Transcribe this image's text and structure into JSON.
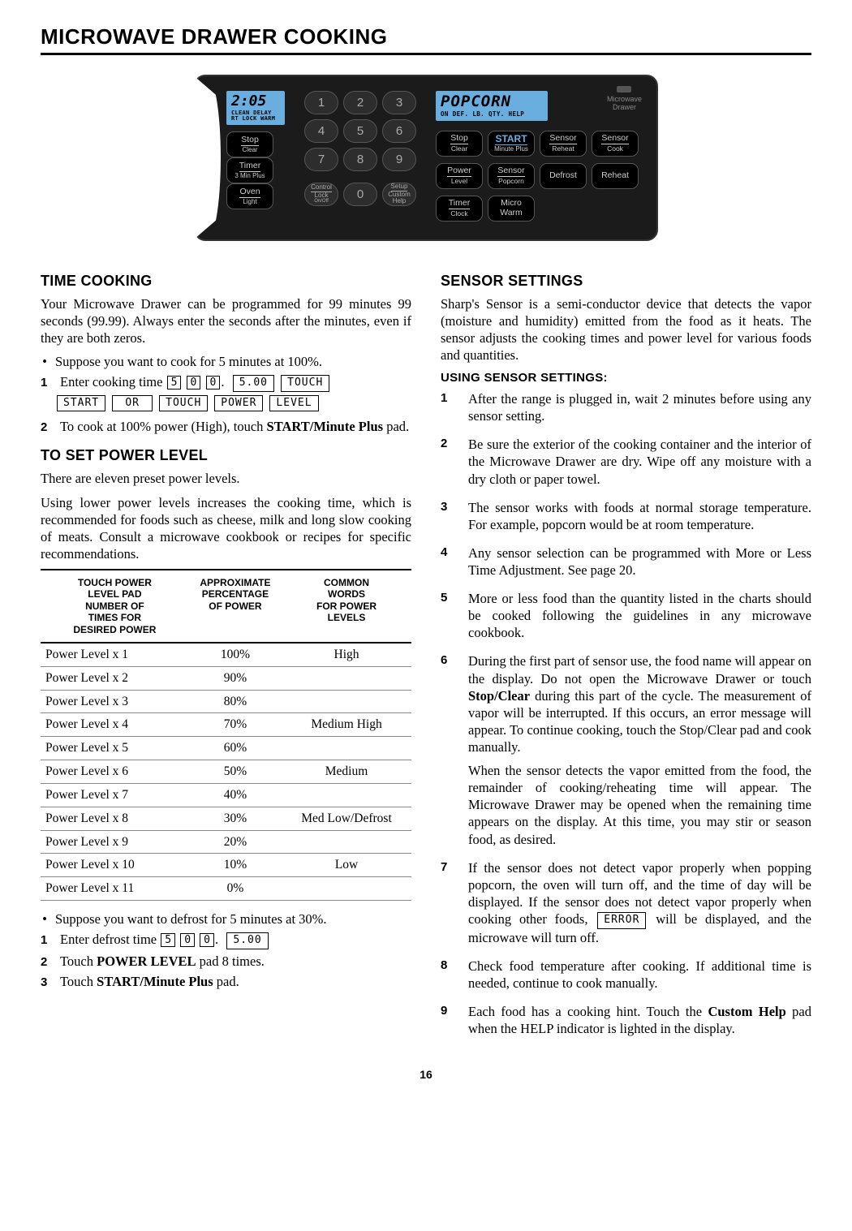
{
  "page_title": "MICROWAVE DRAWER COOKING",
  "page_number": "16",
  "panel": {
    "left_lcd": {
      "time": "2:05",
      "sub": "CLEAN DELAY\nRT LOCK WARM"
    },
    "right_lcd": {
      "text": "POPCORN",
      "sub": "ON  DEF.  LB.  QTY.  HELP"
    },
    "drawer": "Microwave\nDrawer",
    "left_btns": [
      [
        "Stop",
        "Clear"
      ],
      [
        "Timer",
        "3 Min Plus"
      ],
      [
        "Oven",
        "Light"
      ]
    ],
    "keypad": [
      "1",
      "2",
      "3",
      "4",
      "5",
      "6",
      "7",
      "8",
      "9"
    ],
    "keypad_bottom": [
      [
        "Control",
        "Lock",
        "On/Off"
      ],
      [
        "0",
        ""
      ],
      [
        "Setup",
        "Custom Help"
      ]
    ],
    "right_rows": [
      [
        [
          "Stop",
          "Clear"
        ],
        [
          "START",
          "Minute Plus"
        ],
        [
          "Sensor",
          "Reheat"
        ],
        [
          "Sensor",
          "Cook"
        ]
      ],
      [
        [
          "Power",
          "Level"
        ],
        [
          "Sensor",
          "Popcorn"
        ],
        [
          "Defrost",
          ""
        ],
        [
          "Reheat",
          ""
        ]
      ],
      [
        [
          "Timer",
          "Clock"
        ],
        [
          "Micro Warm",
          ""
        ]
      ]
    ]
  },
  "left_col": {
    "time_hdr": "TIME COOKING",
    "time_intro": "Your Microwave Drawer can be programmed for 99 minutes 99 seconds (99.99). Always enter the seconds after the minutes, even if they are both zeros.",
    "time_bullet": "Suppose you want to cook for 5 minutes at 100%.",
    "step1_pre": "Enter cooking time ",
    "step1_keys": [
      "5",
      "0",
      "0"
    ],
    "disp_5": "5.00",
    "disp_touch": "TOUCH",
    "disp_row": [
      "START",
      "OR",
      "TOUCH",
      "POWER",
      "LEVEL"
    ],
    "step2": "To cook at 100% power (High), touch START/Minute Plus pad.",
    "step2_bold": "START/Minute Plus",
    "pl_hdr": "TO SET POWER LEVEL",
    "pl_p1": "There are eleven preset power levels.",
    "pl_p2": "Using lower power levels increases the cooking time, which is recommended for foods such as cheese, milk and long slow cooking of meats. Consult a microwave cookbook or recipes for specific recommendations.",
    "table_headers": [
      "TOUCH POWER LEVEL PAD NUMBER OF TIMES FOR DESIRED POWER",
      "APPROXIMATE PERCENTAGE OF POWER",
      "COMMON WORDS FOR POWER LEVELS"
    ],
    "table_rows": [
      [
        "Power Level x 1",
        "100%",
        "High"
      ],
      [
        "Power Level x 2",
        "90%",
        ""
      ],
      [
        "Power Level x 3",
        "80%",
        ""
      ],
      [
        "Power Level x 4",
        "70%",
        "Medium High"
      ],
      [
        "Power Level x 5",
        "60%",
        ""
      ],
      [
        "Power Level x 6",
        "50%",
        "Medium"
      ],
      [
        "Power Level x 7",
        "40%",
        ""
      ],
      [
        "Power Level x 8",
        "30%",
        "Med Low/Defrost"
      ],
      [
        "Power Level x 9",
        "20%",
        ""
      ],
      [
        "Power Level x 10",
        "10%",
        "Low"
      ],
      [
        "Power Level x 11",
        "0%",
        ""
      ]
    ],
    "defrost_bullet": "Suppose you want to defrost for 5 minutes at 30%.",
    "d1_pre": "Enter defrost time ",
    "d1_keys": [
      "5",
      "0",
      "0"
    ],
    "d1_disp": "5.00",
    "d2": "Touch POWER LEVEL pad 8 times.",
    "d2_bold": "POWER LEVEL",
    "d3": "Touch START/Minute Plus pad.",
    "d3_bold": "START/Minute Plus"
  },
  "right_col": {
    "hdr": "SENSOR SETTINGS",
    "intro": "Sharp's Sensor is a semi-conductor device that detects the vapor (moisture and humidity) emitted from the food as it heats. The sensor adjusts the cooking times and power level for various foods and quantities.",
    "sub": "USING SENSOR SETTINGS:",
    "items": [
      {
        "n": "1",
        "p": [
          "After the range is plugged in, wait 2 minutes before using any sensor setting."
        ]
      },
      {
        "n": "2",
        "p": [
          "Be sure the exterior of the cooking container and the interior of the Microwave Drawer are dry. Wipe off any moisture with a dry cloth or paper towel."
        ]
      },
      {
        "n": "3",
        "p": [
          "The sensor works with foods at normal storage temperature. For example, popcorn would be at room temperature."
        ]
      },
      {
        "n": "4",
        "p": [
          "Any sensor selection can be programmed with More or Less Time Adjustment. See page 20."
        ]
      },
      {
        "n": "5",
        "p": [
          "More or less food than the quantity listed in the charts should be cooked following the guidelines in any microwave cookbook."
        ]
      },
      {
        "n": "6",
        "p": [
          "During the first part of sensor use, the food name will appear on the display. Do not open the Microwave Drawer or touch Stop/Clear during this part of the cycle. The measurement of vapor will be interrupted. If this occurs, an error message will appear. To continue cooking, touch the Stop/Clear pad and cook manually.",
          "When the sensor detects the vapor emitted from the food, the remainder of cooking/reheating time will appear. The Microwave Drawer may be opened when the remaining time appears on the display. At this time, you may stir or season food, as desired."
        ],
        "bold": [
          "Stop/Clear",
          "Stop/Clear"
        ]
      },
      {
        "n": "7",
        "p": [
          "If the sensor does not detect vapor properly when popping popcorn, the oven will turn off, and the time of day will be displayed. If the sensor does not detect vapor properly when cooking other foods, |ERROR| will be displayed, and the microwave will turn off."
        ]
      },
      {
        "n": "8",
        "p": [
          "Check food temperature after cooking. If additional time is needed, continue to cook manually."
        ]
      },
      {
        "n": "9",
        "p": [
          "Each food has a cooking hint. Touch the Custom Help pad when the HELP indicator is lighted in the display."
        ],
        "bold": [
          "Custom Help"
        ]
      }
    ],
    "error_box": "ERROR"
  }
}
